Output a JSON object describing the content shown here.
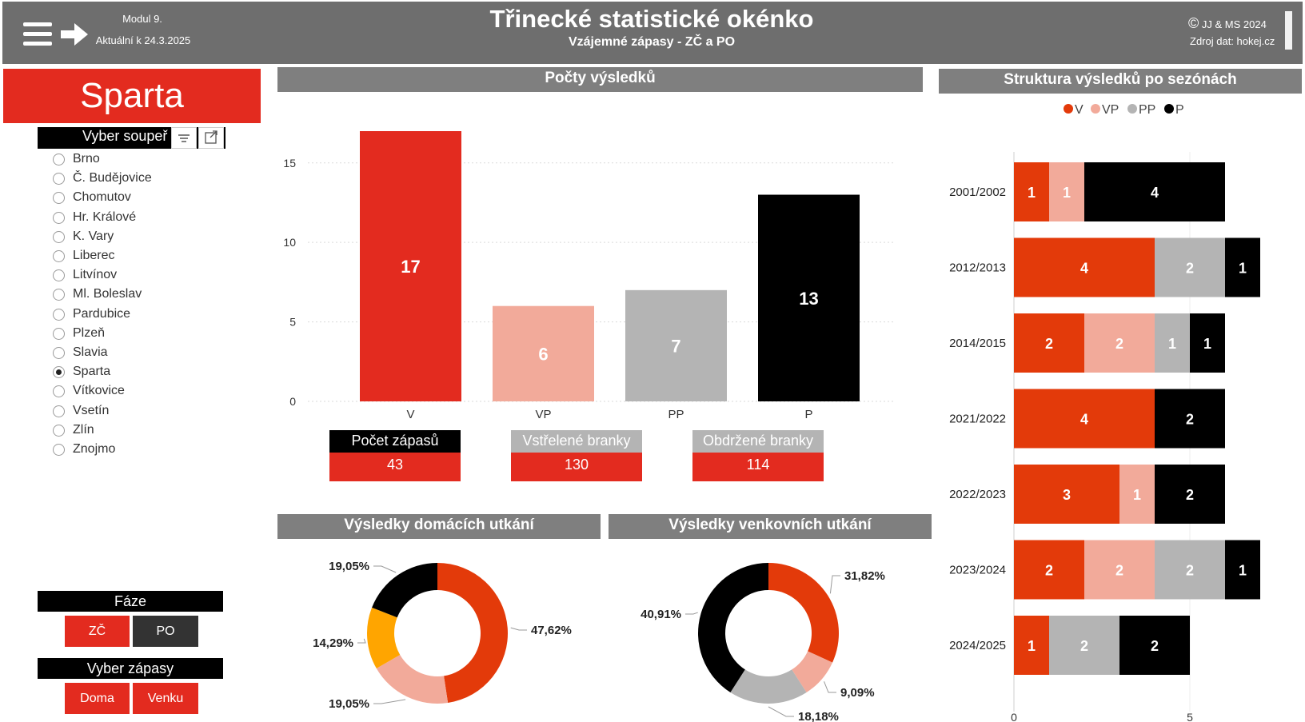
{
  "header": {
    "module": "Modul 9.",
    "updated": "Aktuální k 24.3.2025",
    "title": "Třinecké statistické okénko",
    "subtitle": "Vzájemné zápasy - ZČ a PO",
    "copyright": "JJ & MS 2024",
    "source": "Zdroj dat: hokej.cz"
  },
  "slicer": {
    "team": "Sparta",
    "header": "Vyber soupeř",
    "options": [
      "Brno",
      "Č. Budějovice",
      "Chomutov",
      "Hr. Králové",
      "K. Vary",
      "Liberec",
      "Litvínov",
      "Ml. Boleslav",
      "Pardubice",
      "Plzeň",
      "Slavia",
      "Sparta",
      "Vítkovice",
      "Vsetín",
      "Zlín",
      "Znojmo"
    ],
    "selected": "Sparta"
  },
  "faze": {
    "header": "Fáze",
    "buttons": [
      "ZČ",
      "PO"
    ]
  },
  "zapasy": {
    "header": "Vyber zápasy",
    "buttons": [
      "Doma",
      "Venku"
    ]
  },
  "colors": {
    "V": "#e32b1f",
    "VP": "#f2aa9a",
    "PP": "#b4b4b4",
    "P": "#000000",
    "V_dark": "#e33a0a",
    "home_pp": "#ffa500"
  },
  "kpis": [
    {
      "label": "Počet zápasů",
      "value": "43"
    },
    {
      "label": "Vstřelené branky",
      "value": "130"
    },
    {
      "label": "Obdržené branky",
      "value": "114"
    }
  ],
  "sections": {
    "counts": "Počty výsledků",
    "structure": "Struktura výsledků po sezónách",
    "home": "Výsledky domácích utkání",
    "away": "Výsledky venkovních utkání"
  },
  "chart_data": [
    {
      "type": "bar",
      "title": "Počty výsledků",
      "categories": [
        "V",
        "VP",
        "PP",
        "P"
      ],
      "values": [
        17,
        6,
        7,
        13
      ],
      "ylim": [
        0,
        17
      ],
      "yticks": [
        0,
        5,
        10,
        15
      ],
      "grid": true
    },
    {
      "type": "bar",
      "orientation": "horizontal",
      "stacked": true,
      "title": "Struktura výsledků po sezónách",
      "legend": "top",
      "categories": [
        "2001/2002",
        "2012/2013",
        "2014/2015",
        "2021/2022",
        "2022/2023",
        "2023/2024",
        "2024/2025"
      ],
      "series": [
        {
          "name": "V",
          "values": [
            1,
            4,
            2,
            4,
            3,
            2,
            1
          ]
        },
        {
          "name": "VP",
          "values": [
            1,
            0,
            2,
            0,
            1,
            2,
            0
          ]
        },
        {
          "name": "PP",
          "values": [
            0,
            2,
            1,
            0,
            0,
            2,
            2
          ]
        },
        {
          "name": "P",
          "values": [
            4,
            1,
            1,
            2,
            2,
            1,
            2
          ]
        }
      ],
      "xticks": [
        0,
        5
      ]
    },
    {
      "type": "pie",
      "title": "Výsledky domácích utkání",
      "slices": [
        {
          "label": "47,62%",
          "value": 47.62
        },
        {
          "label": "19,05%",
          "value": 19.05
        },
        {
          "label": "14,29%",
          "value": 14.29
        },
        {
          "label": "19,05%",
          "value": 19.05
        }
      ]
    },
    {
      "type": "pie",
      "title": "Výsledky venkovních utkání",
      "slices": [
        {
          "label": "31,82%",
          "value": 31.82
        },
        {
          "label": "9,09%",
          "value": 9.09
        },
        {
          "label": "18,18%",
          "value": 18.18
        },
        {
          "label": "40,91%",
          "value": 40.91
        }
      ]
    }
  ]
}
